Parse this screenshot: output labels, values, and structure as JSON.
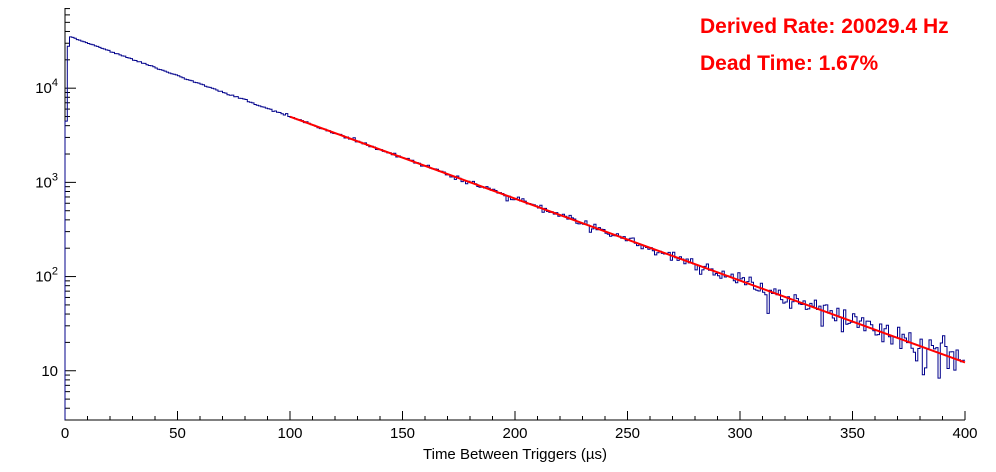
{
  "annotations": {
    "derived_rate": "Derived Rate: 20029.4 Hz",
    "dead_time": "Dead Time: 1.67%",
    "color": "#ff0000"
  },
  "chart_data": {
    "type": "histogram",
    "title": "",
    "xlabel": "Time Between Triggers (µs)",
    "ylabel": "",
    "xlim": [
      0,
      400
    ],
    "ylim": [
      3,
      71000
    ],
    "y_scale": "log",
    "grid": false,
    "legend": "none",
    "x_major_ticks": [
      0,
      50,
      100,
      150,
      200,
      250,
      300,
      350,
      400
    ],
    "x_minor_step": 10,
    "y_major_ticks": [
      10,
      100,
      1000,
      10000
    ],
    "hist_color": "#00008b",
    "hist_line_width": 1,
    "fit_color": "#ff0000",
    "fit_line_width": 2,
    "fit": {
      "x_start": 100,
      "x_end": 400,
      "N0": 36945,
      "decay_per_us": 0.0200294
    },
    "model": {
      "N0": 36945,
      "decay_per_us": 0.0200294,
      "bin_width_us": 1,
      "n_bins": 400,
      "seed": 20294,
      "deadtime_factors": [
        0.12,
        0.78
      ]
    },
    "anchor_points": [
      [
        0,
        35000
      ],
      [
        50,
        13600
      ],
      [
        100,
        5000
      ],
      [
        150,
        1840
      ],
      [
        200,
        676
      ],
      [
        250,
        249
      ],
      [
        300,
        92
      ],
      [
        350,
        34
      ],
      [
        400,
        12
      ]
    ]
  }
}
